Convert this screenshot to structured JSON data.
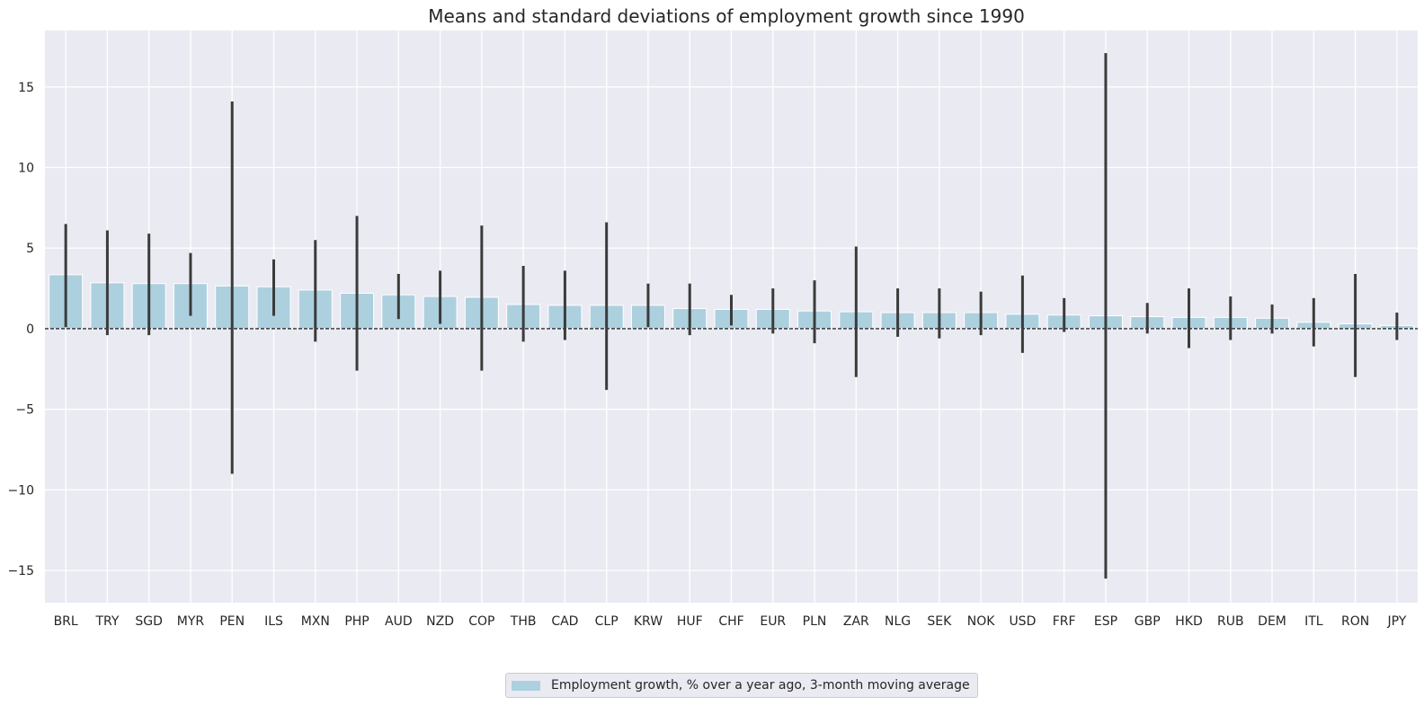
{
  "colors": {
    "bar": "#add0df",
    "plot_bg": "#eaeaf2",
    "grid": "#ffffff",
    "errorbar": "#3b3b3b",
    "zero_line": "#000000"
  },
  "chart_data": {
    "type": "bar",
    "title": "Means and standard deviations of employment growth since 1990",
    "xlabel": "",
    "ylabel": "",
    "ylim": [
      -17,
      18.5
    ],
    "yticks": [
      -15,
      -10,
      -5,
      0,
      5,
      10,
      15
    ],
    "ytick_labels": [
      "−15",
      "−10",
      "−5",
      "0",
      "5",
      "10",
      "15"
    ],
    "grid": true,
    "zero_line": "dashed",
    "categories": [
      "BRL",
      "TRY",
      "SGD",
      "MYR",
      "PEN",
      "ILS",
      "MXN",
      "PHP",
      "AUD",
      "NZD",
      "COP",
      "THB",
      "CAD",
      "CLP",
      "KRW",
      "HUF",
      "CHF",
      "EUR",
      "PLN",
      "ZAR",
      "NLG",
      "SEK",
      "NOK",
      "USD",
      "FRF",
      "ESP",
      "GBP",
      "HKD",
      "RUB",
      "DEM",
      "ITL",
      "RON",
      "JPY"
    ],
    "values": [
      3.35,
      2.85,
      2.8,
      2.8,
      2.65,
      2.6,
      2.4,
      2.2,
      2.1,
      2.0,
      1.95,
      1.5,
      1.45,
      1.45,
      1.45,
      1.25,
      1.2,
      1.2,
      1.1,
      1.05,
      1.0,
      1.0,
      1.0,
      0.9,
      0.85,
      0.8,
      0.75,
      0.7,
      0.7,
      0.65,
      0.4,
      0.3,
      0.2
    ],
    "error_low": [
      0.1,
      -0.4,
      -0.4,
      0.8,
      -9.0,
      0.8,
      -0.8,
      -2.6,
      0.6,
      0.3,
      -2.6,
      -0.8,
      -0.7,
      -3.8,
      0.1,
      -0.4,
      0.2,
      -0.3,
      -0.9,
      -3.0,
      -0.5,
      -0.6,
      -0.4,
      -1.5,
      -0.2,
      -15.5,
      -0.3,
      -1.2,
      -0.7,
      -0.3,
      -1.1,
      -3.0,
      -0.7
    ],
    "error_high": [
      6.5,
      6.1,
      5.9,
      4.7,
      14.1,
      4.3,
      5.5,
      7.0,
      3.4,
      3.6,
      6.4,
      3.9,
      3.6,
      6.6,
      2.8,
      2.8,
      2.1,
      2.5,
      3.0,
      5.1,
      2.5,
      2.5,
      2.3,
      3.3,
      1.9,
      17.1,
      1.6,
      2.5,
      2.0,
      1.5,
      1.9,
      3.4,
      1.0
    ],
    "legend": [
      "Employment growth, % over a year ago, 3-month moving average"
    ],
    "legend_position": "bottom-center"
  }
}
